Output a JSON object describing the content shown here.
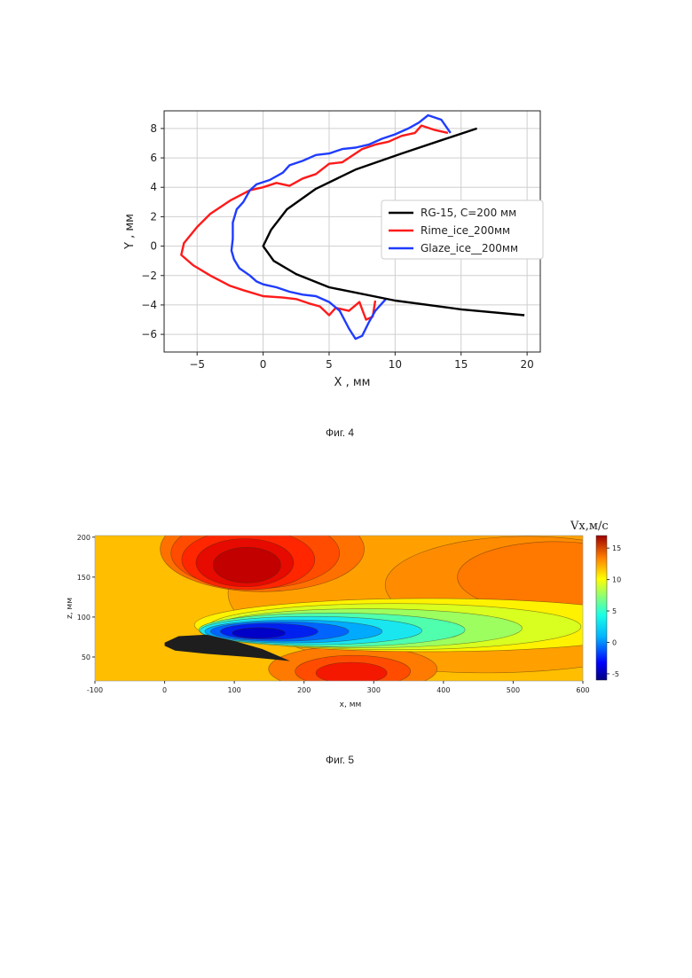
{
  "figures": [
    {
      "caption": "Фиг. 4"
    },
    {
      "caption": "Фиг. 5"
    }
  ],
  "chart_data": [
    {
      "type": "line",
      "xlabel": "X , мм",
      "ylabel": "Y , мм",
      "xlim": [
        -7.5,
        21
      ],
      "ylim": [
        -7.2,
        9.2
      ],
      "xticks": [
        -5,
        0,
        5,
        10,
        15,
        20
      ],
      "yticks": [
        -6,
        -4,
        -2,
        0,
        2,
        4,
        6,
        8
      ],
      "grid": true,
      "legend_position": "center-right",
      "series": [
        {
          "name": "RG-15, C=200 мм",
          "color": "#000000",
          "points": [
            [
              19.8,
              -4.7
            ],
            [
              15,
              -4.3
            ],
            [
              10,
              -3.7
            ],
            [
              5,
              -2.8
            ],
            [
              2.5,
              -1.9
            ],
            [
              0.8,
              -1.0
            ],
            [
              0,
              0
            ],
            [
              0.6,
              1.1
            ],
            [
              1.8,
              2.5
            ],
            [
              4,
              3.9
            ],
            [
              7,
              5.2
            ],
            [
              10.5,
              6.3
            ],
            [
              13.5,
              7.2
            ],
            [
              16.2,
              8.0
            ]
          ]
        },
        {
          "name": "Rime_ice_200мм",
          "color": "#ff1a1a",
          "points": [
            [
              14,
              7.7
            ],
            [
              13,
              7.9
            ],
            [
              12,
              8.2
            ],
            [
              11.5,
              7.7
            ],
            [
              10.5,
              7.5
            ],
            [
              9.5,
              7.1
            ],
            [
              8.5,
              6.9
            ],
            [
              7.5,
              6.6
            ],
            [
              6,
              5.7
            ],
            [
              5,
              5.6
            ],
            [
              4,
              4.9
            ],
            [
              3,
              4.6
            ],
            [
              2,
              4.1
            ],
            [
              1,
              4.3
            ],
            [
              0,
              4.0
            ],
            [
              -1,
              3.8
            ],
            [
              -2.5,
              3.1
            ],
            [
              -4,
              2.2
            ],
            [
              -5,
              1.3
            ],
            [
              -6,
              0.2
            ],
            [
              -6.2,
              -0.6
            ],
            [
              -5.3,
              -1.3
            ],
            [
              -4,
              -2.0
            ],
            [
              -2.5,
              -2.7
            ],
            [
              -1.5,
              -3.0
            ],
            [
              0,
              -3.4
            ],
            [
              1.5,
              -3.5
            ],
            [
              2.5,
              -3.6
            ],
            [
              3.5,
              -3.9
            ],
            [
              4.3,
              -4.1
            ],
            [
              5,
              -4.7
            ],
            [
              5.5,
              -4.2
            ],
            [
              6.5,
              -4.4
            ],
            [
              7.3,
              -3.8
            ],
            [
              7.5,
              -4.3
            ],
            [
              7.8,
              -5.0
            ],
            [
              8.3,
              -4.8
            ],
            [
              8.5,
              -3.7
            ]
          ]
        },
        {
          "name": "Glaze_ice__200мм",
          "color": "#1f3cff",
          "points": [
            [
              14.2,
              7.7
            ],
            [
              13.5,
              8.6
            ],
            [
              12.5,
              8.9
            ],
            [
              11.8,
              8.4
            ],
            [
              11,
              8.0
            ],
            [
              10,
              7.6
            ],
            [
              9,
              7.3
            ],
            [
              8,
              6.9
            ],
            [
              7,
              6.7
            ],
            [
              6,
              6.6
            ],
            [
              5,
              6.3
            ],
            [
              4,
              6.2
            ],
            [
              3,
              5.8
            ],
            [
              2,
              5.5
            ],
            [
              1.5,
              5.0
            ],
            [
              0.5,
              4.5
            ],
            [
              -0.5,
              4.2
            ],
            [
              -1,
              3.8
            ],
            [
              -1.5,
              3.0
            ],
            [
              -2,
              2.5
            ],
            [
              -2.3,
              1.6
            ],
            [
              -2.3,
              0.5
            ],
            [
              -2.4,
              -0.3
            ],
            [
              -2.2,
              -0.9
            ],
            [
              -1.8,
              -1.5
            ],
            [
              -1,
              -2.0
            ],
            [
              -0.5,
              -2.4
            ],
            [
              0,
              -2.6
            ],
            [
              1,
              -2.8
            ],
            [
              2,
              -3.1
            ],
            [
              3,
              -3.3
            ],
            [
              4,
              -3.4
            ],
            [
              5,
              -3.8
            ],
            [
              5.8,
              -4.4
            ],
            [
              6.5,
              -5.6
            ],
            [
              7,
              -6.3
            ],
            [
              7.5,
              -6.1
            ],
            [
              8,
              -5.2
            ],
            [
              8.5,
              -4.4
            ],
            [
              9.3,
              -3.6
            ]
          ]
        }
      ]
    },
    {
      "type": "heatmap",
      "colorbar_title": "Vx,м/с",
      "xlabel": "x, мм",
      "ylabel": "z, мм",
      "xlim": [
        -100,
        600
      ],
      "ylim": [
        20,
        202
      ],
      "xticks": [
        -100,
        0,
        100,
        200,
        300,
        400,
        500,
        600
      ],
      "yticks": [
        50,
        100,
        150,
        200
      ],
      "colorbar_ticks": [
        15,
        10,
        5,
        0,
        -5
      ],
      "colorbar_range": [
        -6,
        17
      ],
      "airfoil_color": "#1e1e1e"
    }
  ]
}
